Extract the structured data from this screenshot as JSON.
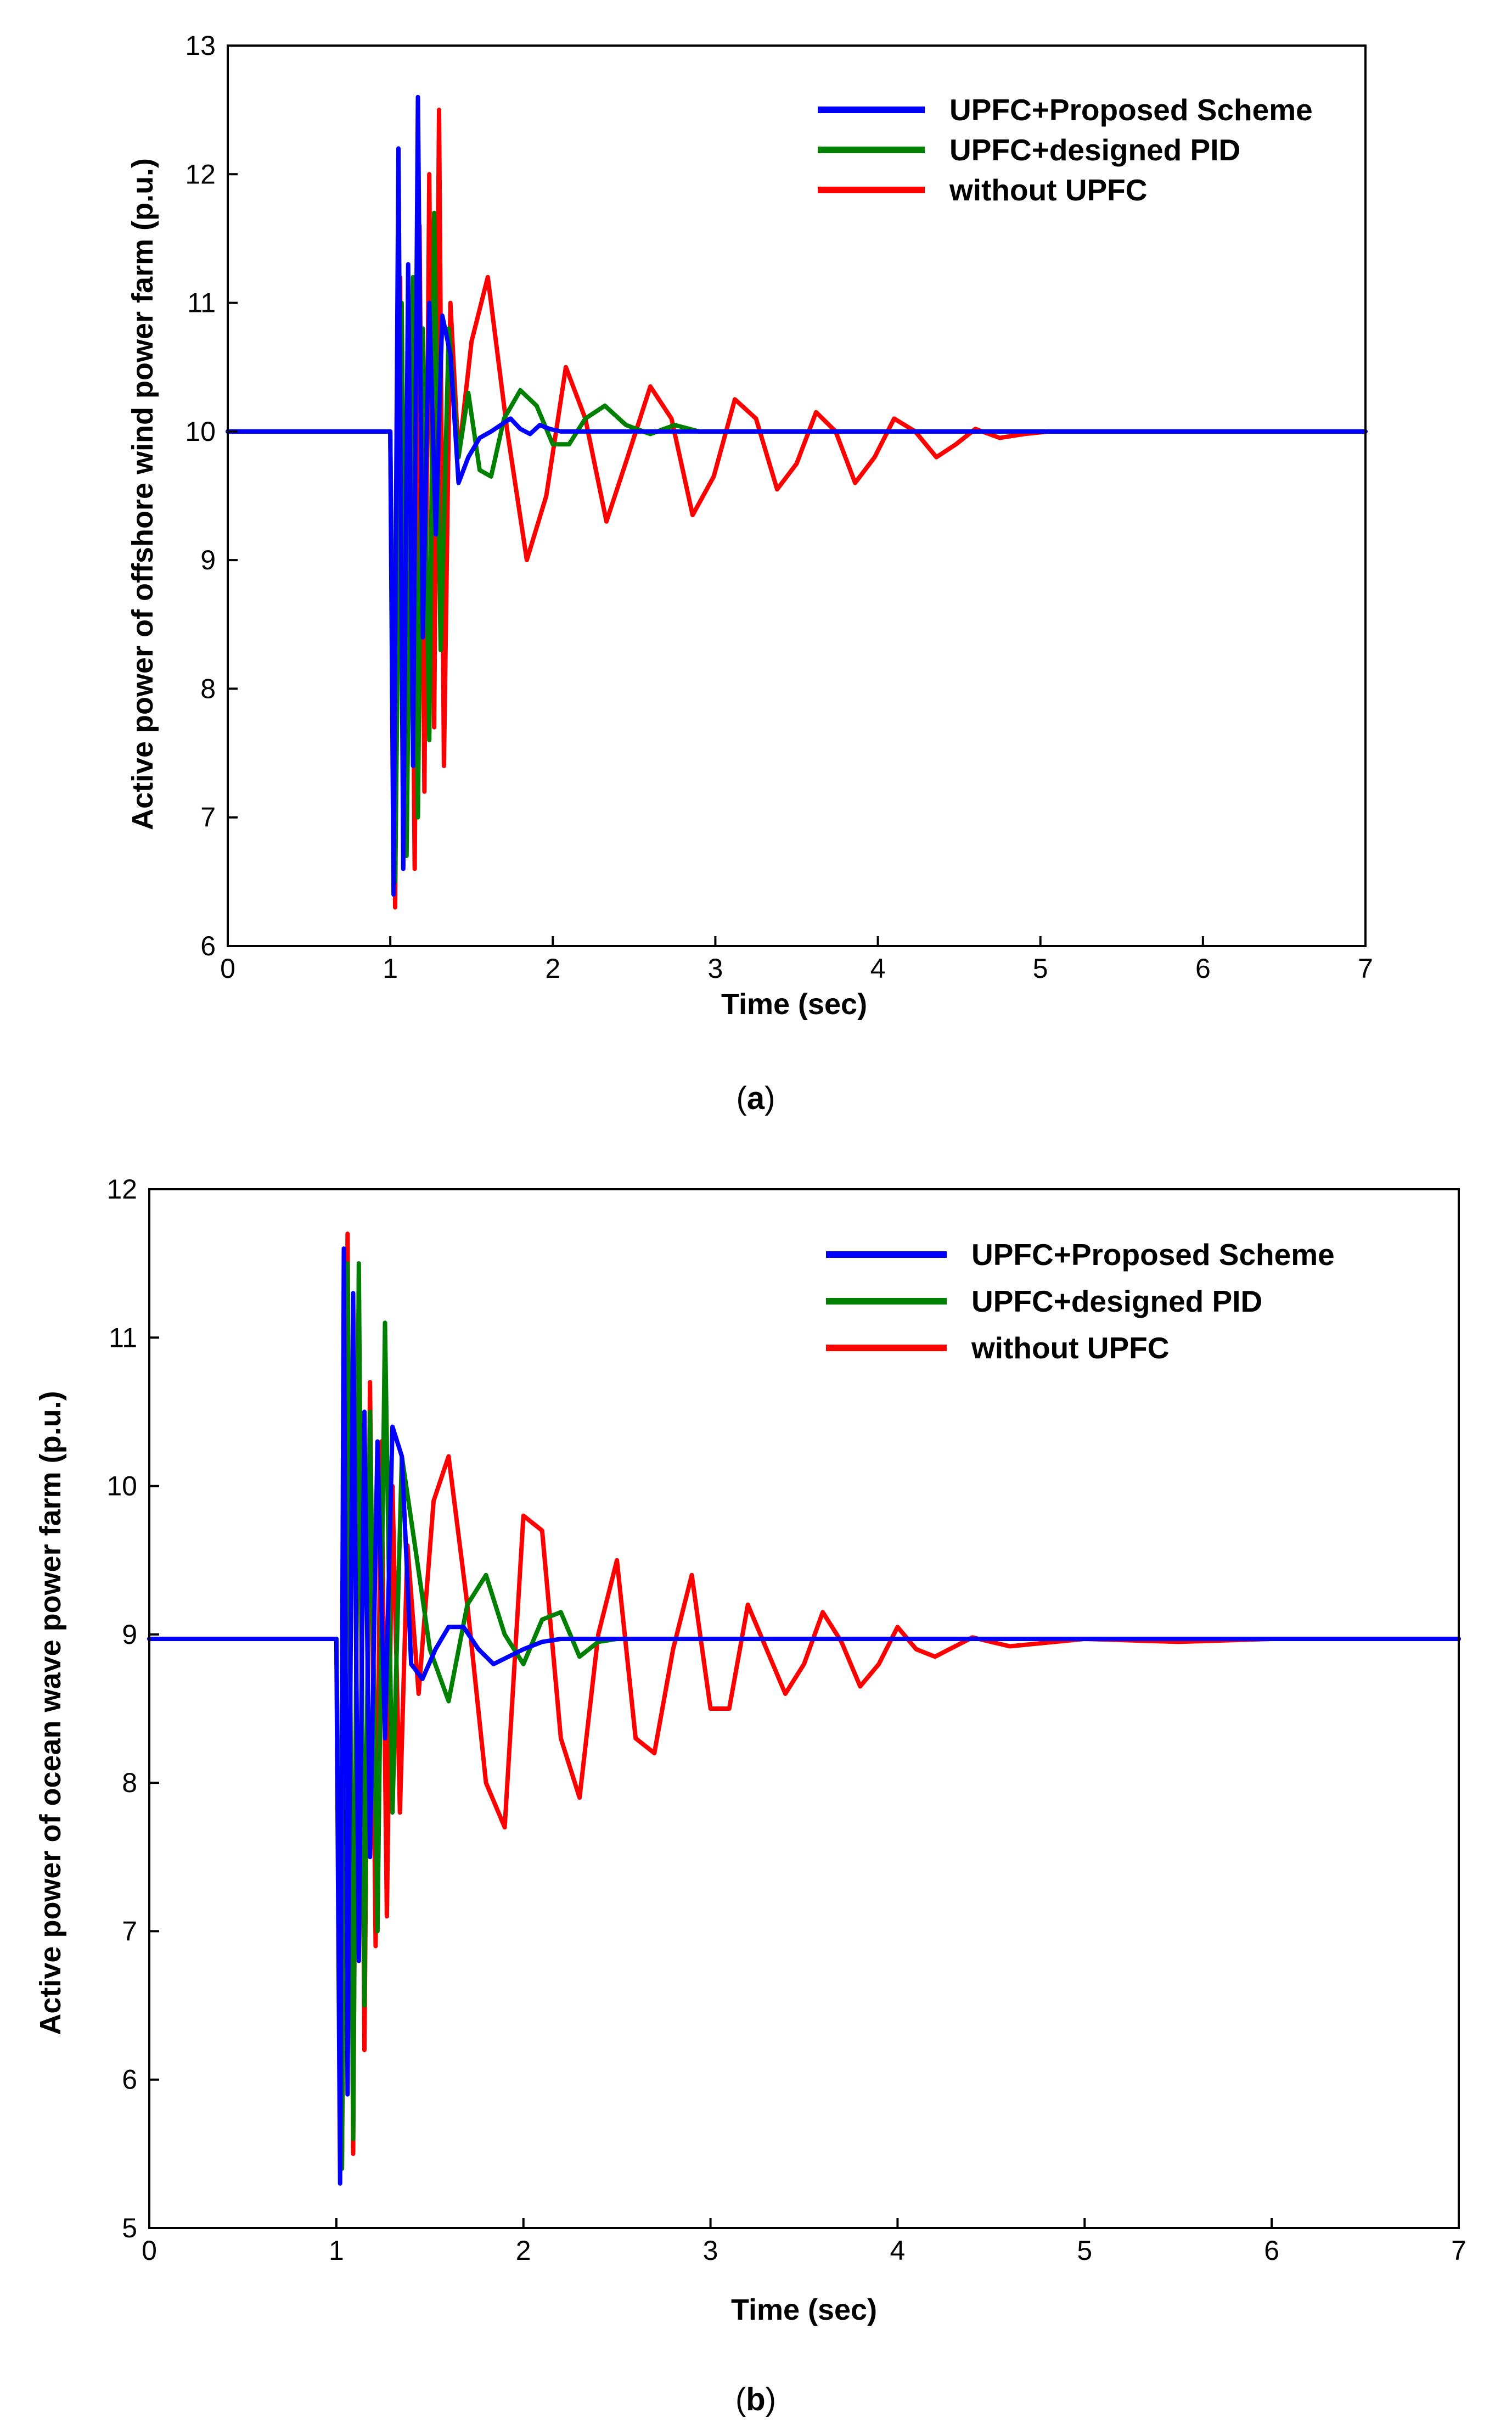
{
  "chart_data": [
    {
      "type": "line",
      "panel": "a",
      "caption": "(a)",
      "caption_open": "(",
      "caption_letter": "a",
      "caption_close": ")",
      "title": "",
      "xlabel": "Time (sec)",
      "ylabel": "Active power of offshore wind power farm (p.u.)",
      "xlim": [
        0,
        7
      ],
      "ylim": [
        6,
        13
      ],
      "xticks": [
        0,
        1,
        2,
        3,
        4,
        5,
        6,
        7
      ],
      "yticks": [
        6,
        7,
        8,
        9,
        10,
        11,
        12,
        13
      ],
      "grid": false,
      "legend_position": "top-right",
      "steady_state": 10.0,
      "fault_time": 1.0,
      "series": [
        {
          "name": "UPFC+Proposed Scheme",
          "color": "#0000ff",
          "settle": 2.0,
          "transient_x": [
            1.0,
            1.02,
            1.05,
            1.08,
            1.11,
            1.14,
            1.17,
            1.2,
            1.24,
            1.28,
            1.32,
            1.37,
            1.42,
            1.48,
            1.55,
            1.62,
            1.68,
            1.74,
            1.8,
            1.86,
            1.92,
            1.98,
            2.05
          ],
          "transient_y": [
            10.0,
            6.4,
            12.2,
            6.6,
            11.3,
            7.4,
            12.6,
            8.4,
            11.0,
            9.2,
            10.9,
            10.6,
            9.6,
            9.8,
            9.95,
            10.0,
            10.05,
            10.1,
            10.02,
            9.98,
            10.05,
            10.02,
            10.0
          ]
        },
        {
          "name": "UPFC+designed PID",
          "color": "#008000",
          "settle": 2.9,
          "transient_x": [
            1.0,
            1.03,
            1.07,
            1.1,
            1.14,
            1.17,
            1.2,
            1.24,
            1.27,
            1.31,
            1.36,
            1.42,
            1.48,
            1.55,
            1.62,
            1.7,
            1.8,
            1.9,
            2.0,
            2.1,
            2.2,
            2.32,
            2.45,
            2.6,
            2.75,
            2.9
          ],
          "transient_y": [
            10.0,
            6.5,
            11.0,
            6.7,
            11.2,
            7.0,
            10.8,
            7.6,
            11.7,
            8.3,
            10.8,
            9.8,
            10.3,
            9.7,
            9.65,
            10.1,
            10.32,
            10.2,
            9.9,
            9.9,
            10.1,
            10.2,
            10.05,
            9.98,
            10.05,
            10.0
          ]
        },
        {
          "name": "without UPFC",
          "color": "#ff0000",
          "settle": 5.2,
          "transient_x": [
            1.0,
            1.03,
            1.06,
            1.09,
            1.12,
            1.15,
            1.18,
            1.21,
            1.24,
            1.27,
            1.3,
            1.33,
            1.37,
            1.42,
            1.5,
            1.6,
            1.72,
            1.84,
            1.96,
            2.08,
            2.2,
            2.33,
            2.46,
            2.6,
            2.73,
            2.86,
            2.99,
            3.12,
            3.25,
            3.38,
            3.5,
            3.62,
            3.74,
            3.86,
            3.98,
            4.1,
            4.23,
            4.36,
            4.48,
            4.6,
            4.75,
            4.9,
            5.05,
            5.2
          ],
          "transient_y": [
            10.0,
            6.3,
            11.2,
            6.8,
            11.0,
            6.6,
            11.6,
            7.2,
            12.0,
            7.7,
            12.5,
            7.4,
            11.0,
            9.8,
            10.7,
            11.2,
            10.0,
            9.0,
            9.5,
            10.5,
            10.1,
            9.3,
            9.8,
            10.35,
            10.1,
            9.35,
            9.65,
            10.25,
            10.1,
            9.55,
            9.75,
            10.15,
            10.0,
            9.6,
            9.8,
            10.1,
            10.0,
            9.8,
            9.9,
            10.02,
            9.95,
            9.98,
            10.0,
            10.0
          ]
        }
      ]
    },
    {
      "type": "line",
      "panel": "b",
      "caption": "(b)",
      "caption_open": "(",
      "caption_letter": "b",
      "caption_close": ")",
      "title": "",
      "xlabel": "Time (sec)",
      "ylabel": "Active power of ocean wave power farm (p.u.)",
      "xlim": [
        0,
        7
      ],
      "ylim": [
        5,
        12
      ],
      "xticks": [
        0,
        1,
        2,
        3,
        4,
        5,
        6,
        7
      ],
      "yticks": [
        5,
        6,
        7,
        8,
        9,
        10,
        11,
        12
      ],
      "grid": false,
      "legend_position": "top-right",
      "steady_state": 8.97,
      "fault_time": 1.0,
      "series": [
        {
          "name": "UPFC+Proposed Scheme",
          "color": "#0000ff",
          "settle": 2.2,
          "transient_x": [
            1.0,
            1.02,
            1.04,
            1.06,
            1.09,
            1.12,
            1.15,
            1.18,
            1.22,
            1.26,
            1.3,
            1.35,
            1.4,
            1.46,
            1.53,
            1.6,
            1.68,
            1.76,
            1.84,
            1.92,
            2.0,
            2.1,
            2.2
          ],
          "transient_y": [
            8.97,
            5.3,
            11.6,
            5.9,
            11.3,
            6.8,
            10.5,
            7.5,
            10.3,
            8.3,
            10.4,
            10.2,
            8.8,
            8.7,
            8.9,
            9.05,
            9.05,
            8.9,
            8.8,
            8.85,
            8.9,
            8.95,
            8.97
          ]
        },
        {
          "name": "UPFC+designed PID",
          "color": "#008000",
          "settle": 2.5,
          "transient_x": [
            1.0,
            1.03,
            1.06,
            1.09,
            1.12,
            1.15,
            1.18,
            1.22,
            1.26,
            1.3,
            1.35,
            1.42,
            1.5,
            1.6,
            1.7,
            1.8,
            1.9,
            2.0,
            2.1,
            2.2,
            2.3,
            2.4,
            2.5
          ],
          "transient_y": [
            8.97,
            5.4,
            11.5,
            5.6,
            11.5,
            6.5,
            10.5,
            7.0,
            11.1,
            7.8,
            10.2,
            9.6,
            8.9,
            8.55,
            9.2,
            9.4,
            9.0,
            8.8,
            9.1,
            9.15,
            8.85,
            8.95,
            8.97
          ]
        },
        {
          "name": "without UPFC",
          "color": "#ff0000",
          "settle": 6.35,
          "transient_x": [
            1.0,
            1.03,
            1.06,
            1.09,
            1.12,
            1.15,
            1.18,
            1.21,
            1.24,
            1.27,
            1.3,
            1.34,
            1.38,
            1.44,
            1.52,
            1.6,
            1.7,
            1.8,
            1.9,
            2.0,
            2.1,
            2.2,
            2.3,
            2.4,
            2.5,
            2.6,
            2.7,
            2.8,
            2.9,
            3.0,
            3.1,
            3.2,
            3.3,
            3.4,
            3.5,
            3.6,
            3.7,
            3.8,
            3.9,
            4.0,
            4.1,
            4.2,
            4.4,
            4.6,
            5.0,
            5.5,
            6.0,
            6.35
          ],
          "transient_y": [
            8.97,
            5.4,
            11.7,
            5.5,
            11.4,
            6.2,
            10.7,
            6.9,
            10.3,
            7.1,
            10.0,
            7.8,
            9.6,
            8.6,
            9.9,
            10.2,
            9.2,
            8.0,
            7.7,
            9.8,
            9.7,
            8.3,
            7.9,
            9.0,
            9.5,
            8.3,
            8.2,
            8.9,
            9.4,
            8.5,
            8.5,
            9.2,
            8.9,
            8.6,
            8.8,
            9.15,
            8.95,
            8.65,
            8.8,
            9.05,
            8.9,
            8.85,
            8.98,
            8.92,
            8.97,
            8.95,
            8.97,
            8.97
          ]
        }
      ]
    }
  ]
}
